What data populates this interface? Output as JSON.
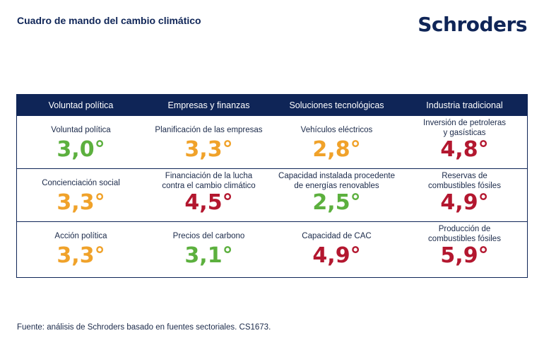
{
  "title": "Cuadro de mando del cambio climático",
  "logo_text": "Schroders",
  "colors": {
    "navy": "#0f2557",
    "green": "#5cb03e",
    "orange": "#f0a22a",
    "red": "#b3172f"
  },
  "columns": [
    "Voluntad política",
    "Empresas y finanzas",
    "Soluciones tecnológicas",
    "Industria tradicional"
  ],
  "rows": [
    [
      {
        "label": "Voluntad política",
        "value": "3,0°",
        "status": "green"
      },
      {
        "label": "Planificación de las empresas",
        "value": "3,3°",
        "status": "orange"
      },
      {
        "label": "Vehículos eléctricos",
        "value": "2,8°",
        "status": "orange"
      },
      {
        "label": "Inversión de petroleras\ny gasísticas",
        "value": "4,8°",
        "status": "red"
      }
    ],
    [
      {
        "label": "Concienciación social",
        "value": "3,3°",
        "status": "orange"
      },
      {
        "label": "Financiación de la lucha\ncontra el cambio climático",
        "value": "4,5°",
        "status": "red"
      },
      {
        "label": "Capacidad instalada procedente\nde energías renovables",
        "value": "2,5°",
        "status": "green"
      },
      {
        "label": "Reservas de\ncombustibles fósiles",
        "value": "4,9°",
        "status": "red"
      }
    ],
    [
      {
        "label": "Acción política",
        "value": "3,3°",
        "status": "orange"
      },
      {
        "label": "Precios del carbono",
        "value": "3,1°",
        "status": "green"
      },
      {
        "label": "Capacidad de CAC",
        "value": "4,9°",
        "status": "red"
      },
      {
        "label": "Producción de\ncombustibles fósiles",
        "value": "5,9°",
        "status": "red"
      }
    ]
  ],
  "source": "Fuente: análisis de Schroders basado en fuentes sectoriales. CS1673."
}
